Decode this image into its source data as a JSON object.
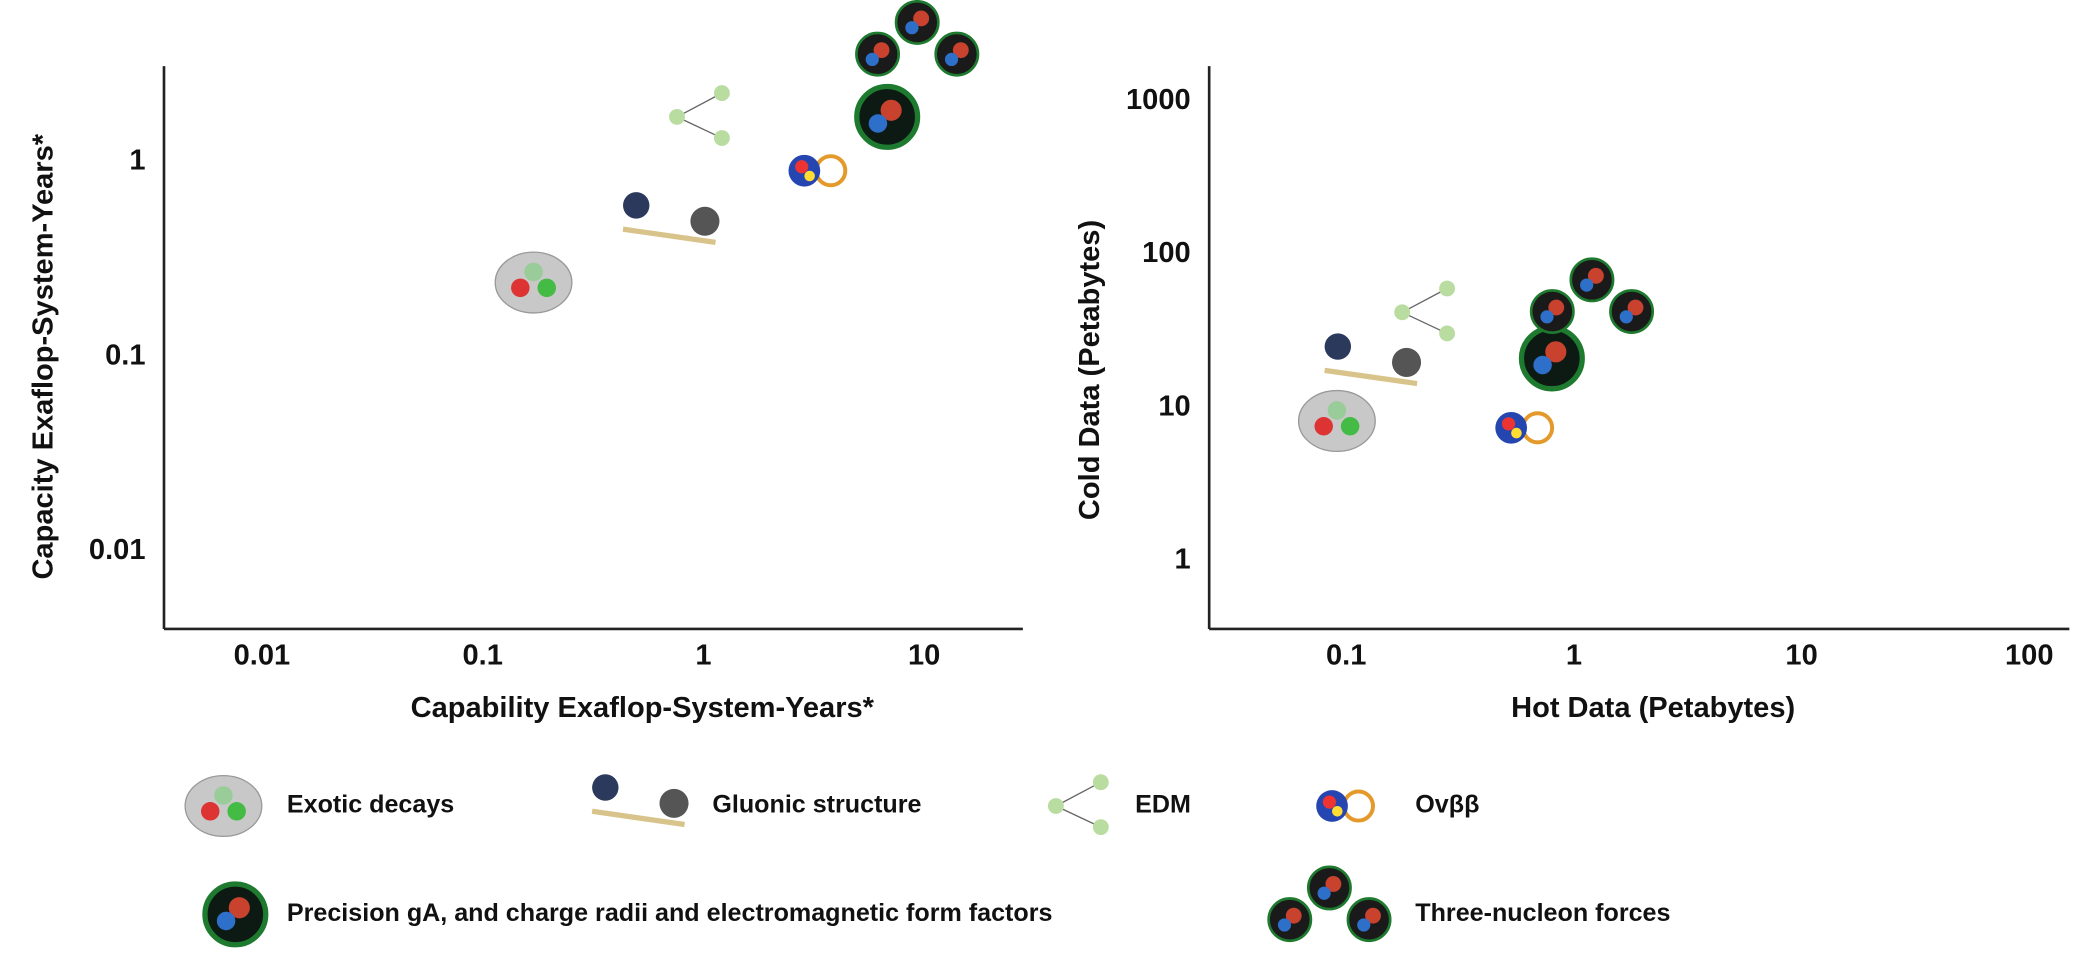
{
  "chart_data": [
    {
      "type": "scatter",
      "xlabel": "Capability Exaflop-System-Years*",
      "ylabel": "Capacity Exaflop-System-Years*",
      "xscale": "log",
      "yscale": "log",
      "xlim": [
        0.0036,
        28
      ],
      "ylim": [
        0.004,
        3.1
      ],
      "xticks": [
        0.01,
        0.1,
        1,
        10
      ],
      "yticks": [
        0.01,
        0.1,
        1
      ],
      "series": [
        {
          "name": "Exotic decays",
          "color": "#c8c8c8",
          "x": [
            0.17
          ],
          "values": [
            0.24
          ]
        },
        {
          "name": "Gluonic structure",
          "color": "#2b3a5c",
          "x": [
            0.71
          ],
          "values": [
            0.48
          ]
        },
        {
          "name": "EDM",
          "color": "#b9dca0",
          "x": [
            1.0
          ],
          "values": [
            1.7
          ]
        },
        {
          "name": "Ovββ",
          "color": "#e39a2b",
          "x": [
            3.2
          ],
          "values": [
            0.9
          ]
        },
        {
          "name": "Precision gA, and charge radii and electromagnetic form factors",
          "color": "#1d7a2e",
          "x": [
            6.8
          ],
          "values": [
            1.7
          ]
        },
        {
          "name": "Three-nucleon forces",
          "color": "#1a1a1a",
          "x": [
            9.3
          ],
          "values": [
            3.8
          ]
        }
      ]
    },
    {
      "type": "scatter",
      "xlabel": "Hot Data (Petabytes)",
      "ylabel": "Cold Data (Petabytes)",
      "xscale": "log",
      "yscale": "log",
      "xlim": [
        0.025,
        150
      ],
      "ylim": [
        0.36,
        1700
      ],
      "xticks": [
        0.1,
        1,
        10,
        100
      ],
      "yticks": [
        1,
        10,
        100,
        1000
      ],
      "series": [
        {
          "name": "Exotic decays",
          "color": "#c8c8c8",
          "x": [
            0.091
          ],
          "values": [
            8.2
          ]
        },
        {
          "name": "Gluonic structure",
          "color": "#2b3a5c",
          "x": [
            0.13
          ],
          "values": [
            19
          ]
        },
        {
          "name": "EDM",
          "color": "#b9dca0",
          "x": [
            0.23
          ],
          "values": [
            42
          ]
        },
        {
          "name": "Ovββ",
          "color": "#e39a2b",
          "x": [
            0.59
          ],
          "values": [
            7.4
          ]
        },
        {
          "name": "Precision gA, and charge radii and electromagnetic form factors",
          "color": "#1d7a2e",
          "x": [
            0.8
          ],
          "values": [
            21
          ]
        },
        {
          "name": "Three-nucleon forces",
          "color": "#1a1a1a",
          "x": [
            1.2
          ],
          "values": [
            46
          ]
        }
      ]
    }
  ]
}
